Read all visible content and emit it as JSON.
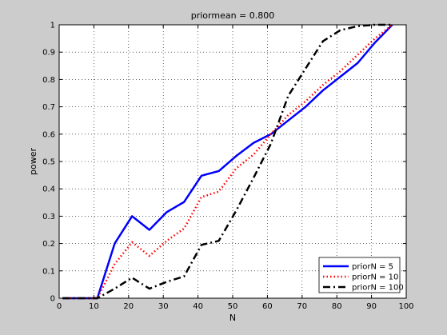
{
  "chart_data": {
    "type": "line",
    "title": "priormean = 0.800",
    "xlabel": "N",
    "ylabel": "power",
    "xlim": [
      0,
      100
    ],
    "ylim": [
      0,
      1
    ],
    "xticks": [
      0,
      10,
      20,
      30,
      40,
      50,
      60,
      70,
      80,
      90,
      100
    ],
    "yticks": [
      0,
      0.1,
      0.2,
      0.3,
      0.4,
      0.5,
      0.6,
      0.7,
      0.8,
      0.9,
      1
    ],
    "xtick_labels": [
      "0",
      "10",
      "20",
      "30",
      "40",
      "50",
      "60",
      "70",
      "80",
      "90",
      "100"
    ],
    "ytick_labels": [
      "0",
      "0.1",
      "0.2",
      "0.3",
      "0.4",
      "0.5",
      "0.6",
      "0.7",
      "0.8",
      "0.9",
      "1"
    ],
    "grid": true,
    "legend_placement": "bottom-right",
    "x": [
      1,
      6,
      11,
      16,
      21,
      26,
      31,
      36,
      41,
      46,
      51,
      56,
      61,
      66,
      71,
      76,
      81,
      86,
      91,
      96
    ],
    "series": [
      {
        "name": "priorN = 5",
        "color": "#0000ff",
        "style": "solid",
        "values": [
          0,
          0,
          0,
          0.2,
          0.3,
          0.25,
          0.315,
          0.352,
          0.448,
          0.465,
          0.52,
          0.568,
          0.6,
          0.65,
          0.7,
          0.76,
          0.81,
          0.86,
          0.935,
          1.0
        ]
      },
      {
        "name": "priorN = 10",
        "color": "#ff0000",
        "style": "dotted",
        "values": [
          0,
          0,
          0,
          0.125,
          0.205,
          0.155,
          0.21,
          0.255,
          0.37,
          0.39,
          0.475,
          0.525,
          0.6,
          0.67,
          0.72,
          0.78,
          0.83,
          0.89,
          0.95,
          1.0
        ]
      },
      {
        "name": "priorN = 100",
        "color": "#000000",
        "style": "dashdot",
        "values": [
          0,
          0,
          0,
          0.035,
          0.075,
          0.035,
          0.06,
          0.08,
          0.195,
          0.21,
          0.32,
          0.44,
          0.565,
          0.74,
          0.84,
          0.94,
          0.98,
          0.995,
          1.0,
          1.0
        ]
      }
    ]
  }
}
